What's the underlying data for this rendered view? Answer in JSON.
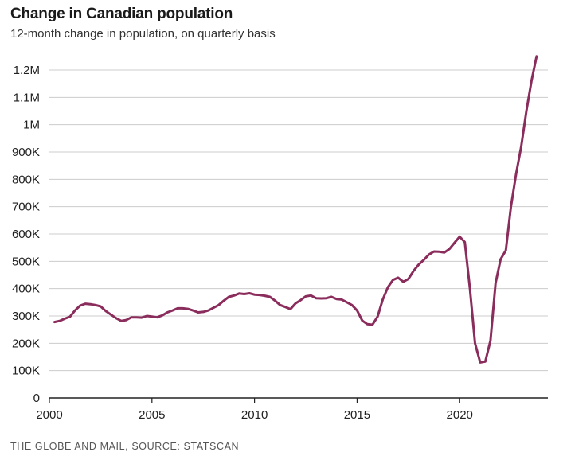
{
  "title": "Change in Canadian population",
  "subtitle": "12-month change in population, on quarterly basis",
  "source": "THE GLOBE AND MAIL, SOURCE: STATSCAN",
  "colors": {
    "line": "#8b2d5c",
    "grid": "#cccccc",
    "axis": "#222222",
    "text": "#222222"
  },
  "chart_data": {
    "type": "line",
    "title": "Change in Canadian population",
    "subtitle": "12-month change in population, on quarterly basis",
    "xlabel": "",
    "ylabel": "",
    "xlim": [
      2000,
      2024.3
    ],
    "ylim": [
      0,
      1250000
    ],
    "grid": "horizontal",
    "legend": "none",
    "x_ticks": [
      2000,
      2005,
      2010,
      2015,
      2020
    ],
    "x_tick_labels": [
      "2000",
      "2005",
      "2010",
      "2015",
      "2020"
    ],
    "y_ticks": [
      0,
      100000,
      200000,
      300000,
      400000,
      500000,
      600000,
      700000,
      800000,
      900000,
      1000000,
      1100000,
      1200000
    ],
    "y_tick_labels": [
      "0",
      "100K",
      "200K",
      "300K",
      "400K",
      "500K",
      "600K",
      "700K",
      "800K",
      "900K",
      "1M",
      "1.1M",
      "1.2M"
    ],
    "series": [
      {
        "color": "#8b2d5c",
        "x": [
          2000.25,
          2000.5,
          2000.75,
          2001.0,
          2001.25,
          2001.5,
          2001.75,
          2002.0,
          2002.25,
          2002.5,
          2002.75,
          2003.0,
          2003.25,
          2003.5,
          2003.75,
          2004.0,
          2004.25,
          2004.5,
          2004.75,
          2005.0,
          2005.25,
          2005.5,
          2005.75,
          2006.0,
          2006.25,
          2006.5,
          2006.75,
          2007.0,
          2007.25,
          2007.5,
          2007.75,
          2008.0,
          2008.25,
          2008.5,
          2008.75,
          2009.0,
          2009.25,
          2009.5,
          2009.75,
          2010.0,
          2010.25,
          2010.5,
          2010.75,
          2011.0,
          2011.25,
          2011.5,
          2011.75,
          2012.0,
          2012.25,
          2012.5,
          2012.75,
          2013.0,
          2013.25,
          2013.5,
          2013.75,
          2014.0,
          2014.25,
          2014.5,
          2014.75,
          2015.0,
          2015.25,
          2015.5,
          2015.75,
          2016.0,
          2016.25,
          2016.5,
          2016.75,
          2017.0,
          2017.25,
          2017.5,
          2017.75,
          2018.0,
          2018.25,
          2018.5,
          2018.75,
          2019.0,
          2019.25,
          2019.5,
          2019.75,
          2020.0,
          2020.25,
          2020.5,
          2020.75,
          2021.0,
          2021.25,
          2021.5,
          2021.75,
          2022.0,
          2022.25,
          2022.5,
          2022.75,
          2023.0,
          2023.25,
          2023.5,
          2023.75
        ],
        "values": [
          278000,
          282000,
          290000,
          297000,
          320000,
          338000,
          345000,
          343000,
          340000,
          335000,
          318000,
          305000,
          292000,
          282000,
          285000,
          295000,
          295000,
          294000,
          300000,
          298000,
          295000,
          302000,
          313000,
          320000,
          328000,
          328000,
          326000,
          320000,
          313000,
          315000,
          320000,
          330000,
          340000,
          356000,
          370000,
          375000,
          382000,
          380000,
          383000,
          378000,
          377000,
          374000,
          370000,
          356000,
          340000,
          333000,
          325000,
          346000,
          358000,
          372000,
          375000,
          365000,
          364000,
          365000,
          370000,
          362000,
          360000,
          350000,
          340000,
          320000,
          283000,
          270000,
          268000,
          298000,
          360000,
          405000,
          432000,
          440000,
          425000,
          435000,
          465000,
          488000,
          505000,
          525000,
          536000,
          535000,
          532000,
          545000,
          568000,
          590000,
          570000,
          400000,
          200000,
          130000,
          133000,
          210000,
          420000,
          508000,
          540000,
          700000,
          820000,
          920000,
          1050000,
          1160000,
          1250000
        ]
      }
    ]
  }
}
